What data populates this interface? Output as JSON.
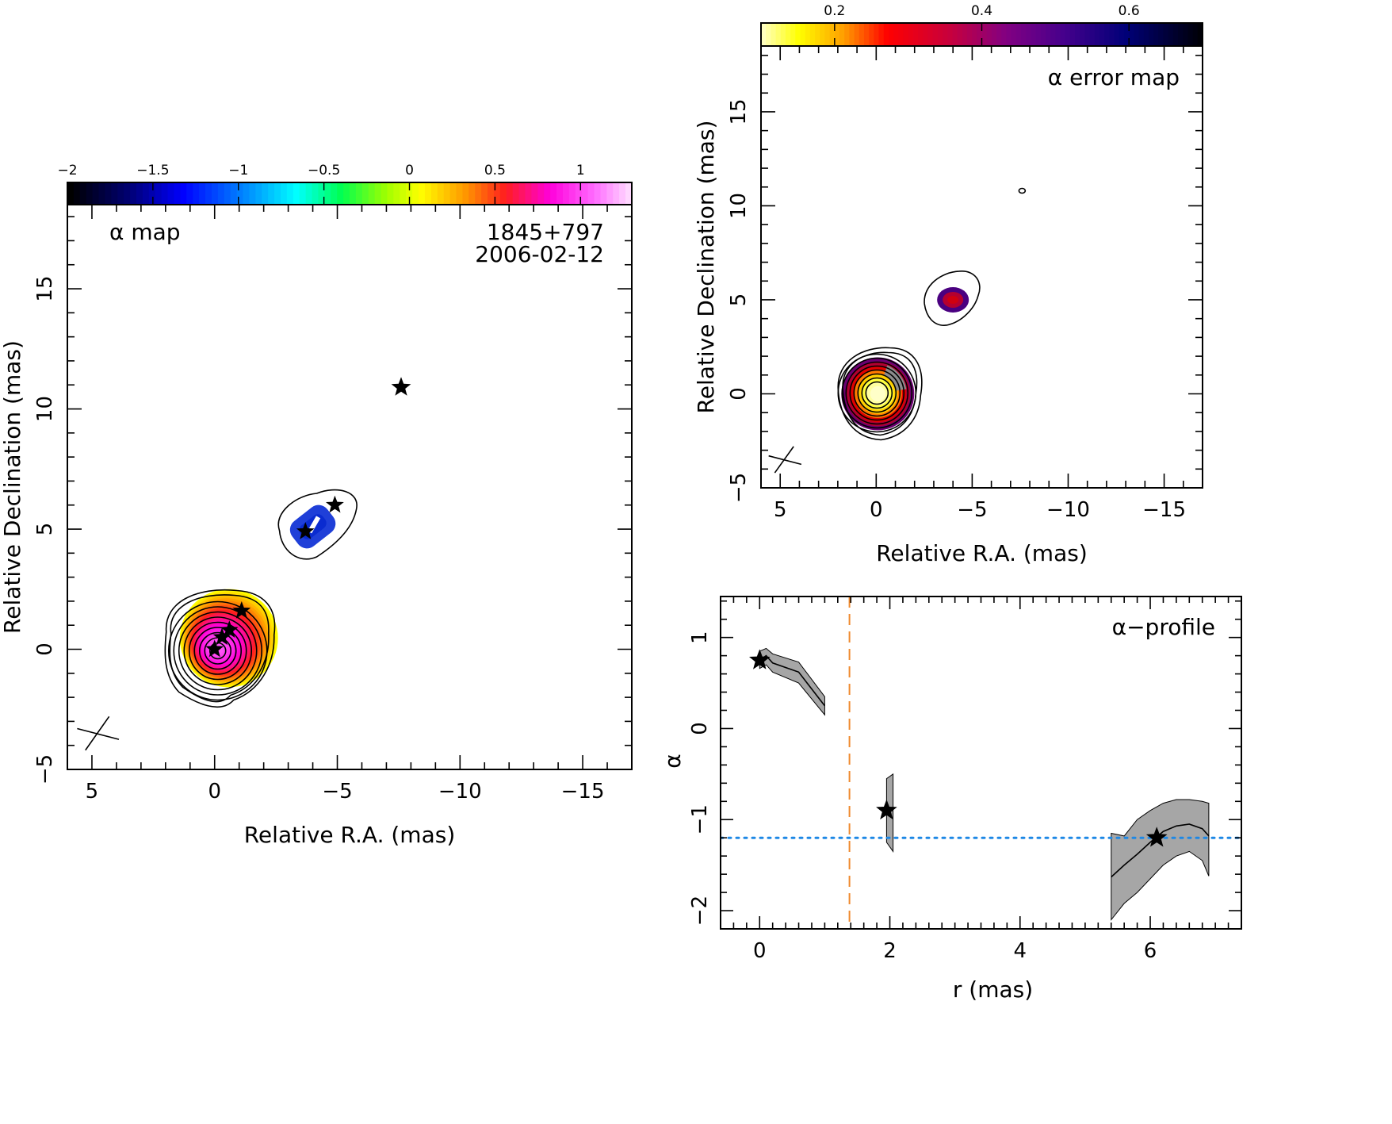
{
  "figure": {
    "source_name": "1845+797",
    "epoch": "2006-02-12"
  },
  "alpha_map": {
    "title": "α map",
    "xlabel": "Relative R.A. (mas)",
    "ylabel": "Relative Declination (mas)",
    "xlim": [
      6.0,
      -17.0
    ],
    "ylim": [
      -5.0,
      18.5
    ],
    "xticks": [
      5,
      0,
      -5,
      -10,
      -15
    ],
    "xtick_labels": [
      "5",
      "0",
      "−5",
      "−10",
      "−15"
    ],
    "yticks": [
      -5,
      0,
      5,
      10,
      15
    ],
    "ytick_labels": [
      "−5",
      "0",
      "5",
      "10",
      "15"
    ],
    "colorbar": {
      "range": [
        -2.0,
        1.3
      ],
      "ticks": [
        -2,
        -1.5,
        -1,
        -0.5,
        0,
        0.5,
        1
      ],
      "tick_labels": [
        "−2",
        "−1.5",
        "−1",
        "−0.5",
        "0",
        "0.5",
        "1"
      ],
      "colormap": "rainbow: black-blue-cyan-green-yellow-orange-red-magenta-pink"
    },
    "components": [
      {
        "ra": 0.0,
        "dec": 0.0
      },
      {
        "ra": -0.3,
        "dec": 0.5
      },
      {
        "ra": -0.6,
        "dec": 0.8
      },
      {
        "ra": -1.1,
        "dec": 1.6
      },
      {
        "ra": -3.7,
        "dec": 4.9
      },
      {
        "ra": -4.9,
        "dec": 6.0
      },
      {
        "ra": -7.6,
        "dec": 10.9
      }
    ],
    "core_alpha_range": [
      0.3,
      1.1
    ],
    "jet_alpha_range": [
      -1.7,
      -1.2
    ]
  },
  "error_map": {
    "title": "α error map",
    "xlabel": "Relative R.A. (mas)",
    "ylabel": "Relative Declination (mas)",
    "xlim": [
      6.0,
      -17.0
    ],
    "ylim": [
      -5.0,
      18.5
    ],
    "xticks": [
      5,
      0,
      -5,
      -10,
      -15
    ],
    "xtick_labels": [
      "5",
      "0",
      "−5",
      "−10",
      "−15"
    ],
    "yticks": [
      -5,
      0,
      5,
      10,
      15
    ],
    "ytick_labels": [
      "−5",
      "0",
      "5",
      "10",
      "15"
    ],
    "colorbar": {
      "range": [
        0.1,
        0.7
      ],
      "ticks": [
        0.2,
        0.4,
        0.6
      ],
      "tick_labels": [
        "0.2",
        "0.4",
        "0.6"
      ],
      "colormap": "yellow-orange-red-purple-navy-black"
    },
    "core_error_range": [
      0.1,
      0.35
    ],
    "jet_error_range": [
      0.3,
      0.55
    ]
  },
  "chart_data": {
    "type": "line",
    "title": "α−profile",
    "xlabel": "r (mas)",
    "ylabel": "α",
    "xlim": [
      -0.6,
      7.4
    ],
    "ylim": [
      -2.2,
      1.45
    ],
    "xticks": [
      0,
      2,
      4,
      6
    ],
    "xtick_labels": [
      "0",
      "2",
      "4",
      "6"
    ],
    "yticks": [
      -2,
      -1,
      0,
      1
    ],
    "ytick_labels": [
      "−2",
      "−1",
      "0",
      "1"
    ],
    "series": [
      {
        "r": [
          0.0,
          0.1,
          0.2,
          0.6,
          1.0
        ],
        "alpha": [
          0.75,
          0.8,
          0.72,
          0.62,
          0.25
        ],
        "upper": [
          0.85,
          0.88,
          0.82,
          0.73,
          0.35
        ],
        "lower": [
          0.66,
          0.7,
          0.62,
          0.5,
          0.15
        ]
      },
      {
        "r": [
          1.95,
          2.05
        ],
        "alpha": [
          -0.9,
          -0.9
        ],
        "upper": [
          -0.55,
          -0.5
        ],
        "lower": [
          -1.25,
          -1.35
        ]
      },
      {
        "r": [
          5.4,
          5.6,
          5.8,
          6.0,
          6.2,
          6.4,
          6.6,
          6.8,
          6.9
        ],
        "alpha": [
          -1.63,
          -1.5,
          -1.38,
          -1.25,
          -1.13,
          -1.07,
          -1.05,
          -1.1,
          -1.18
        ],
        "upper": [
          -1.15,
          -1.18,
          -1.0,
          -0.9,
          -0.82,
          -0.78,
          -0.78,
          -0.8,
          -0.82
        ],
        "lower": [
          -2.1,
          -1.92,
          -1.8,
          -1.65,
          -1.5,
          -1.4,
          -1.35,
          -1.45,
          -1.62
        ]
      }
    ],
    "components": [
      {
        "r": 0.0,
        "alpha": 0.75
      },
      {
        "r": 1.95,
        "alpha": -0.9
      },
      {
        "r": 6.1,
        "alpha": -1.2
      }
    ],
    "reference_hline_alpha": -1.2,
    "reference_vline_r": 1.38,
    "colors": {
      "band": "#a6a6a6",
      "hline": "#1e88e5",
      "vline": "#ef8a2e"
    }
  }
}
